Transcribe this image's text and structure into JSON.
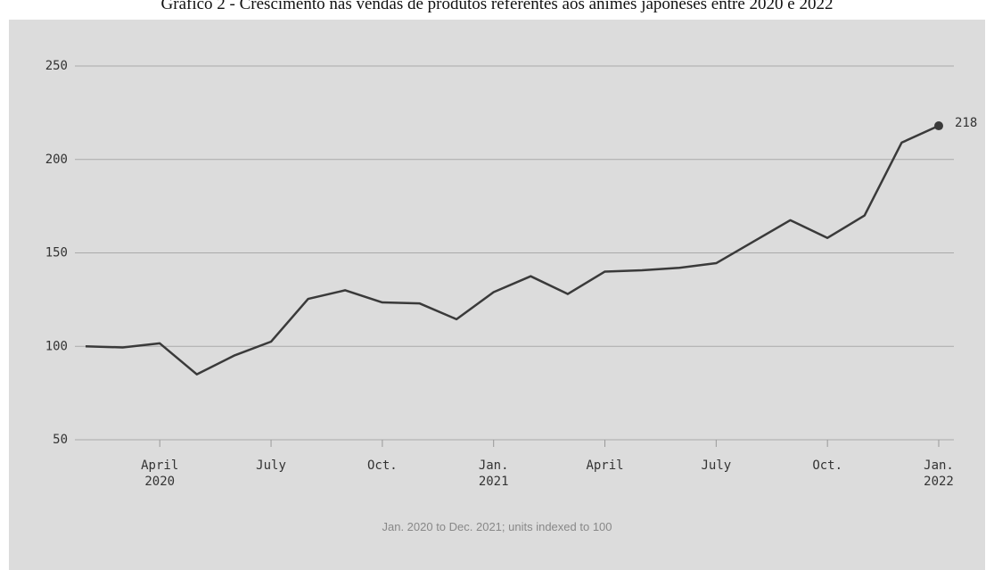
{
  "chart_data": {
    "type": "line",
    "title": "Gráfico 2 - Crescimento nas vendas de produtos referentes aos animes japoneses entre 2020 e 2022",
    "subtitle": "Jan. 2020 to Dec. 2021; units indexed to 100",
    "categories": [
      null,
      null,
      "April\n2020",
      null,
      null,
      "July",
      null,
      null,
      "Oct.",
      null,
      null,
      "Jan.\n2021",
      null,
      null,
      "April",
      null,
      null,
      "July",
      null,
      null,
      "Oct.",
      null,
      null,
      "Jan.\n2022"
    ],
    "values": [
      100,
      99.4,
      101.6,
      85,
      95,
      102.5,
      125.4,
      130,
      123.5,
      123,
      114.5,
      129,
      137.5,
      128,
      140,
      140.7,
      142,
      144.5,
      156,
      167.5,
      158,
      170,
      209,
      218
    ],
    "color": "#3a3a3a",
    "ylim": [
      50,
      250
    ],
    "yticks": [
      50,
      100,
      150,
      200,
      250
    ],
    "grid": true
  }
}
